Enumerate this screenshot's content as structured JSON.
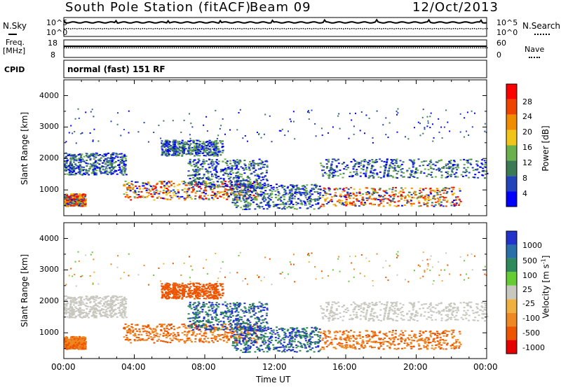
{
  "header": {
    "title": "South Pole Station (fitACF)",
    "beam": "Beam 09",
    "date": "12/Oct/2013"
  },
  "top_panels": {
    "nsky_label": "N.Sky",
    "nsearch_label": "N.Search",
    "freq_label_1": "Freq.",
    "freq_label_2": "[MHz]",
    "nave_label": "Nave",
    "cpid_label": "CPID",
    "cpid_value": "normal (fast) 151 RF",
    "noise_ticks_left": [
      "10^5",
      "10^0"
    ],
    "noise_ticks_right": [
      "10^5",
      "10^0"
    ],
    "freq_ticks": [
      "18",
      "8"
    ],
    "nave_ticks": [
      "60",
      "0"
    ]
  },
  "chart_data": [
    {
      "type": "heatmap",
      "ylabel": "Slant Range [km]",
      "ylim": [
        180,
        4500
      ],
      "yticks": [
        "1000",
        "2000",
        "3000",
        "4000"
      ],
      "colorbar_label": "Power [dB]",
      "colorbar_ticks": [
        "4",
        "8",
        "12",
        "16",
        "20",
        "24",
        "28"
      ],
      "colors": [
        "#0000ff",
        "#2244bb",
        "#3a7a55",
        "#6ab04c",
        "#f0c419",
        "#f08c00",
        "#ee4400",
        "#ff0000"
      ]
    },
    {
      "type": "heatmap",
      "ylabel": "Slant Range [km]",
      "ylim": [
        180,
        4500
      ],
      "yticks": [
        "1000",
        "2000",
        "3000",
        "4000"
      ],
      "colorbar_label": "Velocity [m s^-1]",
      "colorbar_ticks": [
        "1000",
        "500",
        "100",
        "25",
        "-25",
        "-100",
        "-500",
        "-1000"
      ],
      "colors": [
        "#2233cc",
        "#2a6eaa",
        "#2e8a5a",
        "#66cc33",
        "#c8c8c0",
        "#f0b040",
        "#ee8822",
        "#ee5500",
        "#e60000"
      ]
    }
  ],
  "x_axis": {
    "ticks": [
      "00:00",
      "04:00",
      "08:00",
      "12:00",
      "16:00",
      "20:00",
      "00:00"
    ],
    "label": "Time UT"
  }
}
